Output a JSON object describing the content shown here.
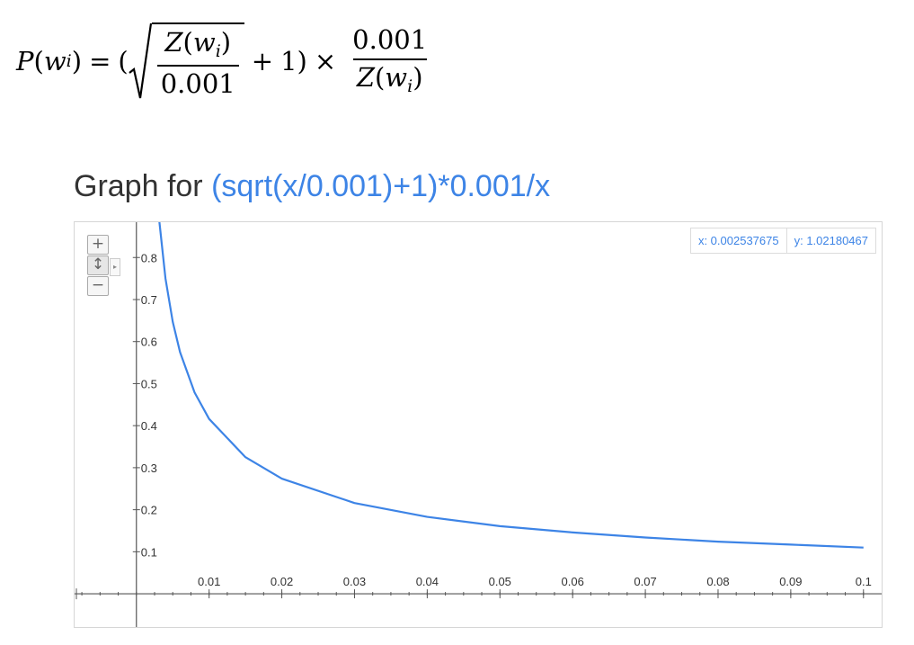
{
  "formula": {
    "P": "P",
    "w": "w",
    "i": "i",
    "Z": "Z",
    "const": "0.001",
    "one": "1"
  },
  "graph_title": {
    "prefix": "Graph for",
    "expression": "(sqrt(x/0.001)+1)*0.001/x"
  },
  "readout": {
    "x_text": "x: 0.002537675",
    "y_text": "y: 1.02180467"
  },
  "zoom_controls": {
    "zoom_in": "+",
    "pan": "↕",
    "zoom_out": "−",
    "expand": "▸"
  },
  "colors": {
    "curve": "#3d84e6",
    "axis": "#555555"
  },
  "chart_data": {
    "type": "line",
    "title": "",
    "xlabel": "",
    "ylabel": "",
    "function": "(sqrt(x/0.001)+1)*0.001/x",
    "xlim": [
      -0.0085,
      0.1025
    ],
    "ylim": [
      -0.079,
      0.884
    ],
    "x_ticks": [
      0.01,
      0.02,
      0.03,
      0.04,
      0.05,
      0.06,
      0.07,
      0.08,
      0.09,
      0.1
    ],
    "x_tick_labels": [
      "0.01",
      "0.02",
      "0.03",
      "0.04",
      "0.05",
      "0.06",
      "0.07",
      "0.08",
      "0.09",
      "0.1"
    ],
    "y_ticks": [
      0.1,
      0.2,
      0.3,
      0.4,
      0.5,
      0.6,
      0.7,
      0.8
    ],
    "y_tick_labels": [
      "0.1",
      "0.2",
      "0.3",
      "0.4",
      "0.5",
      "0.6",
      "0.7",
      "0.8"
    ],
    "series": [
      {
        "x": [
          0.0027,
          0.003,
          0.004,
          0.005,
          0.006,
          0.008,
          0.01,
          0.015,
          0.02,
          0.03,
          0.04,
          0.05,
          0.06,
          0.07,
          0.08,
          0.09,
          0.1
        ],
        "y": [
          0.979,
          0.911,
          0.75,
          0.647,
          0.575,
          0.479,
          0.416,
          0.325,
          0.274,
          0.216,
          0.183,
          0.161,
          0.146,
          0.134,
          0.124,
          0.117,
          0.11
        ]
      }
    ],
    "grid": false
  }
}
